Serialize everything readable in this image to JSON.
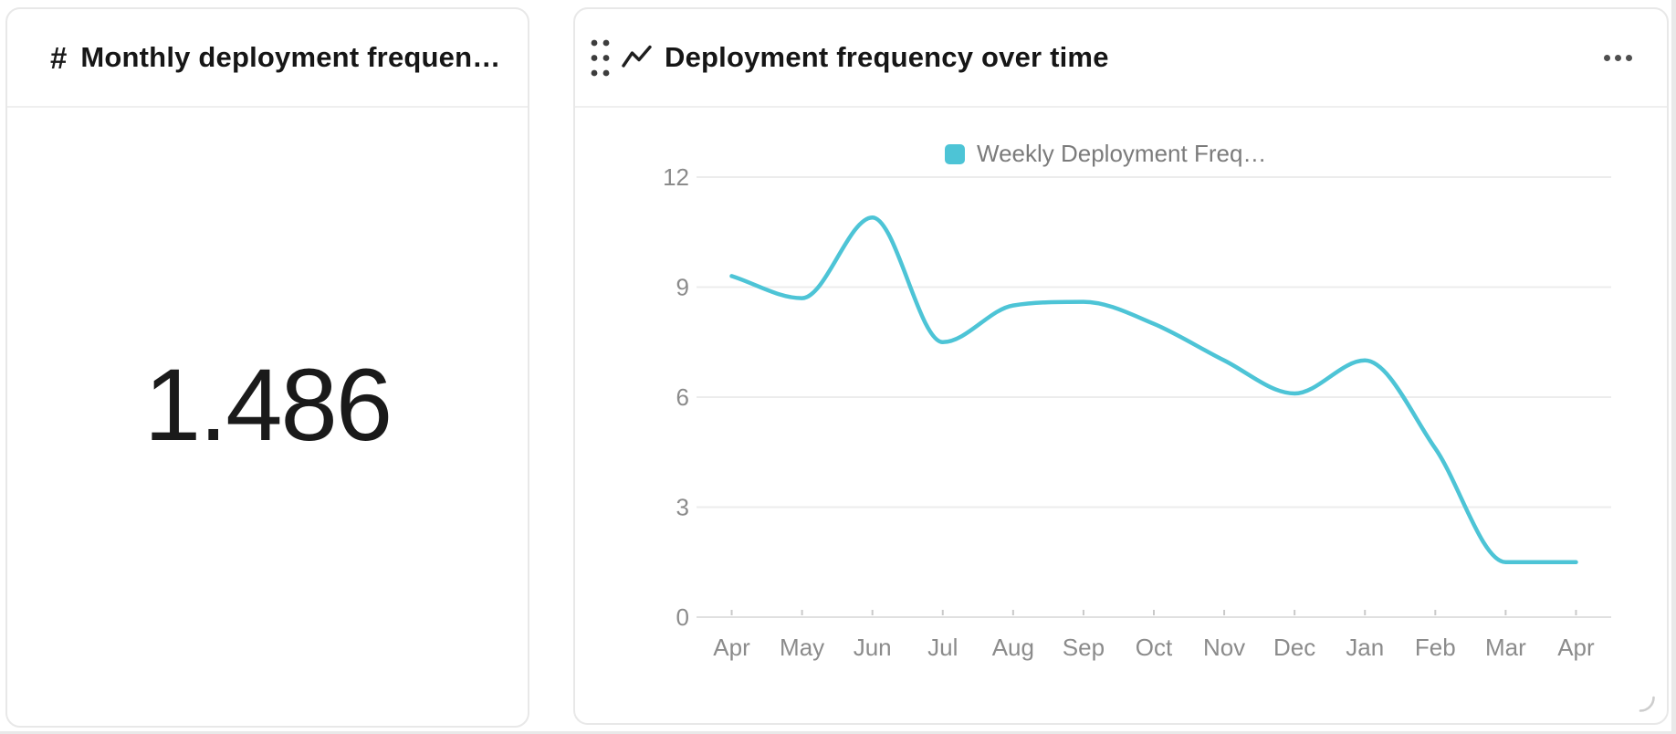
{
  "kpi_card": {
    "type_icon": "#",
    "type_icon_name": "hash-number-icon",
    "title": "Monthly deployment frequen…",
    "value": "1.486"
  },
  "chart_card": {
    "icons": {
      "drag_handle": "six-dot-grip",
      "chart_type": "line-trend",
      "menu": "three-dot-ellipsis",
      "resize": "corner-resize"
    }
  },
  "chart_data": {
    "type": "line",
    "title": "Deployment frequency over time",
    "x": [
      "Apr",
      "May",
      "Jun",
      "Jul",
      "Aug",
      "Sep",
      "Oct",
      "Nov",
      "Dec",
      "Jan",
      "Feb",
      "Mar",
      "Apr"
    ],
    "series": [
      {
        "name": "Weekly Deployment Freq…",
        "color": "#4dc4d6",
        "smooth": true,
        "values": [
          9.3,
          8.7,
          10.9,
          7.5,
          8.5,
          8.6,
          8.0,
          7.0,
          6.1,
          7.0,
          4.6,
          1.5,
          1.5
        ]
      }
    ],
    "ylim": [
      0,
      12
    ],
    "yticks": [
      0,
      3,
      6,
      9,
      12
    ],
    "grid": true,
    "legend_position": "top"
  },
  "colors": {
    "accent": "#4dc4d6",
    "gridline": "#ececec",
    "axis_line": "#e0e0e0",
    "tick": "#c9c9c9",
    "axis_label": "#8b8b8b",
    "legend_text": "#7b7b7b",
    "title_text": "#161616",
    "card_border": "#e8e8e8"
  }
}
